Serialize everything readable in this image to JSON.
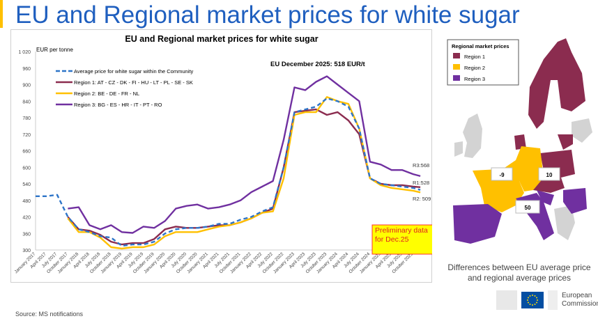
{
  "page": {
    "title": "EU and Regional market prices for white sugar",
    "source": "Source: MS notifications"
  },
  "chart_data": {
    "type": "line",
    "title": "EU and Regional market prices for white sugar",
    "ylabel": "EUR per tonne",
    "ylim": [
      300,
      1020
    ],
    "yticks": [
      300,
      360,
      420,
      480,
      540,
      600,
      660,
      720,
      780,
      840,
      900,
      960,
      1020
    ],
    "ytick_labels": [
      "300",
      "360",
      "420",
      "480",
      "540",
      "600",
      "660",
      "720",
      "780",
      "840",
      "900",
      "960",
      "1 020"
    ],
    "annotation": "EU December 2025:  518 EUR/t",
    "note": "Preliminary data for Dec.25",
    "end_labels": {
      "r3": "R3:568",
      "r1": "R1:528",
      "r2": "R2: 509"
    },
    "x_labels": [
      "January 2017",
      "April 2017",
      "July 2017",
      "October 2017",
      "January 2018",
      "April 2018",
      "July 2018",
      "October 2018",
      "January 2019",
      "April 2019",
      "July 2019",
      "October 2019",
      "January 2020",
      "April 2020",
      "July 2020",
      "October 2020",
      "January 2021",
      "April 2021",
      "July 2021",
      "October 2021",
      "January 2022",
      "April 2022",
      "July 2022",
      "October 2022",
      "January 2023",
      "April 2023",
      "July 2023",
      "October 2023",
      "January 2024",
      "April 2024",
      "July 2024",
      "October 2024",
      "January 2025",
      "April 2025",
      "July 2025",
      "October 2025"
    ],
    "x_months": [
      0,
      3,
      6,
      9,
      12,
      15,
      18,
      21,
      24,
      27,
      30,
      33,
      36,
      39,
      42,
      45,
      48,
      51,
      54,
      57,
      60,
      63,
      66,
      69,
      72,
      75,
      78,
      81,
      84,
      87,
      90,
      93,
      96,
      99,
      102,
      105,
      107
    ],
    "series": [
      {
        "name": "Average price for white sugar within the Community",
        "color": "#2e75c8",
        "dash": true,
        "values": [
          495,
          495,
          500,
          420,
          375,
          365,
          350,
          345,
          315,
          320,
          320,
          330,
          360,
          375,
          380,
          380,
          385,
          395,
          395,
          410,
          420,
          440,
          455,
          600,
          800,
          810,
          820,
          850,
          840,
          820,
          740,
          560,
          540,
          535,
          530,
          525,
          518
        ]
      },
      {
        "name": "Region 1: AT - CZ - DK - FI - HU - LT - PL - SE - SK",
        "color": "#8b2c4f",
        "values": [
          null,
          null,
          null,
          420,
          375,
          370,
          355,
          330,
          320,
          325,
          325,
          340,
          375,
          385,
          380,
          380,
          385,
          390,
          390,
          400,
          415,
          435,
          450,
          600,
          800,
          805,
          810,
          790,
          800,
          770,
          720,
          560,
          540,
          535,
          535,
          530,
          528
        ]
      },
      {
        "name": "Region 2: BE - DE - FR -  NL",
        "color": "#ffc000",
        "values": [
          null,
          null,
          null,
          415,
          365,
          365,
          345,
          310,
          305,
          310,
          310,
          320,
          350,
          365,
          365,
          365,
          375,
          385,
          390,
          400,
          415,
          435,
          440,
          560,
          790,
          800,
          800,
          855,
          840,
          830,
          740,
          560,
          535,
          525,
          520,
          515,
          509
        ]
      },
      {
        "name": "Region 3: BG - ES - HR - IT - PT - RO",
        "color": "#7030a0",
        "values": [
          null,
          null,
          null,
          450,
          455,
          390,
          375,
          390,
          365,
          362,
          385,
          380,
          405,
          450,
          460,
          465,
          450,
          455,
          465,
          480,
          510,
          530,
          550,
          700,
          890,
          880,
          910,
          930,
          900,
          870,
          840,
          620,
          610,
          590,
          590,
          575,
          568
        ]
      }
    ]
  },
  "map": {
    "legend_title": "Regional market prices",
    "legend": [
      {
        "label": "Region 1",
        "color": "#8b2c4f"
      },
      {
        "label": "Region 2",
        "color": "#ffc000"
      },
      {
        "label": "Region 3",
        "color": "#7030a0"
      }
    ],
    "diffs": {
      "r2": "-9",
      "r1": "10",
      "r3": "50"
    },
    "caption_line1": "Differences between EU average price",
    "caption_line2": "and regional average prices"
  },
  "logo": {
    "line1": "European",
    "line2": "Commission"
  }
}
